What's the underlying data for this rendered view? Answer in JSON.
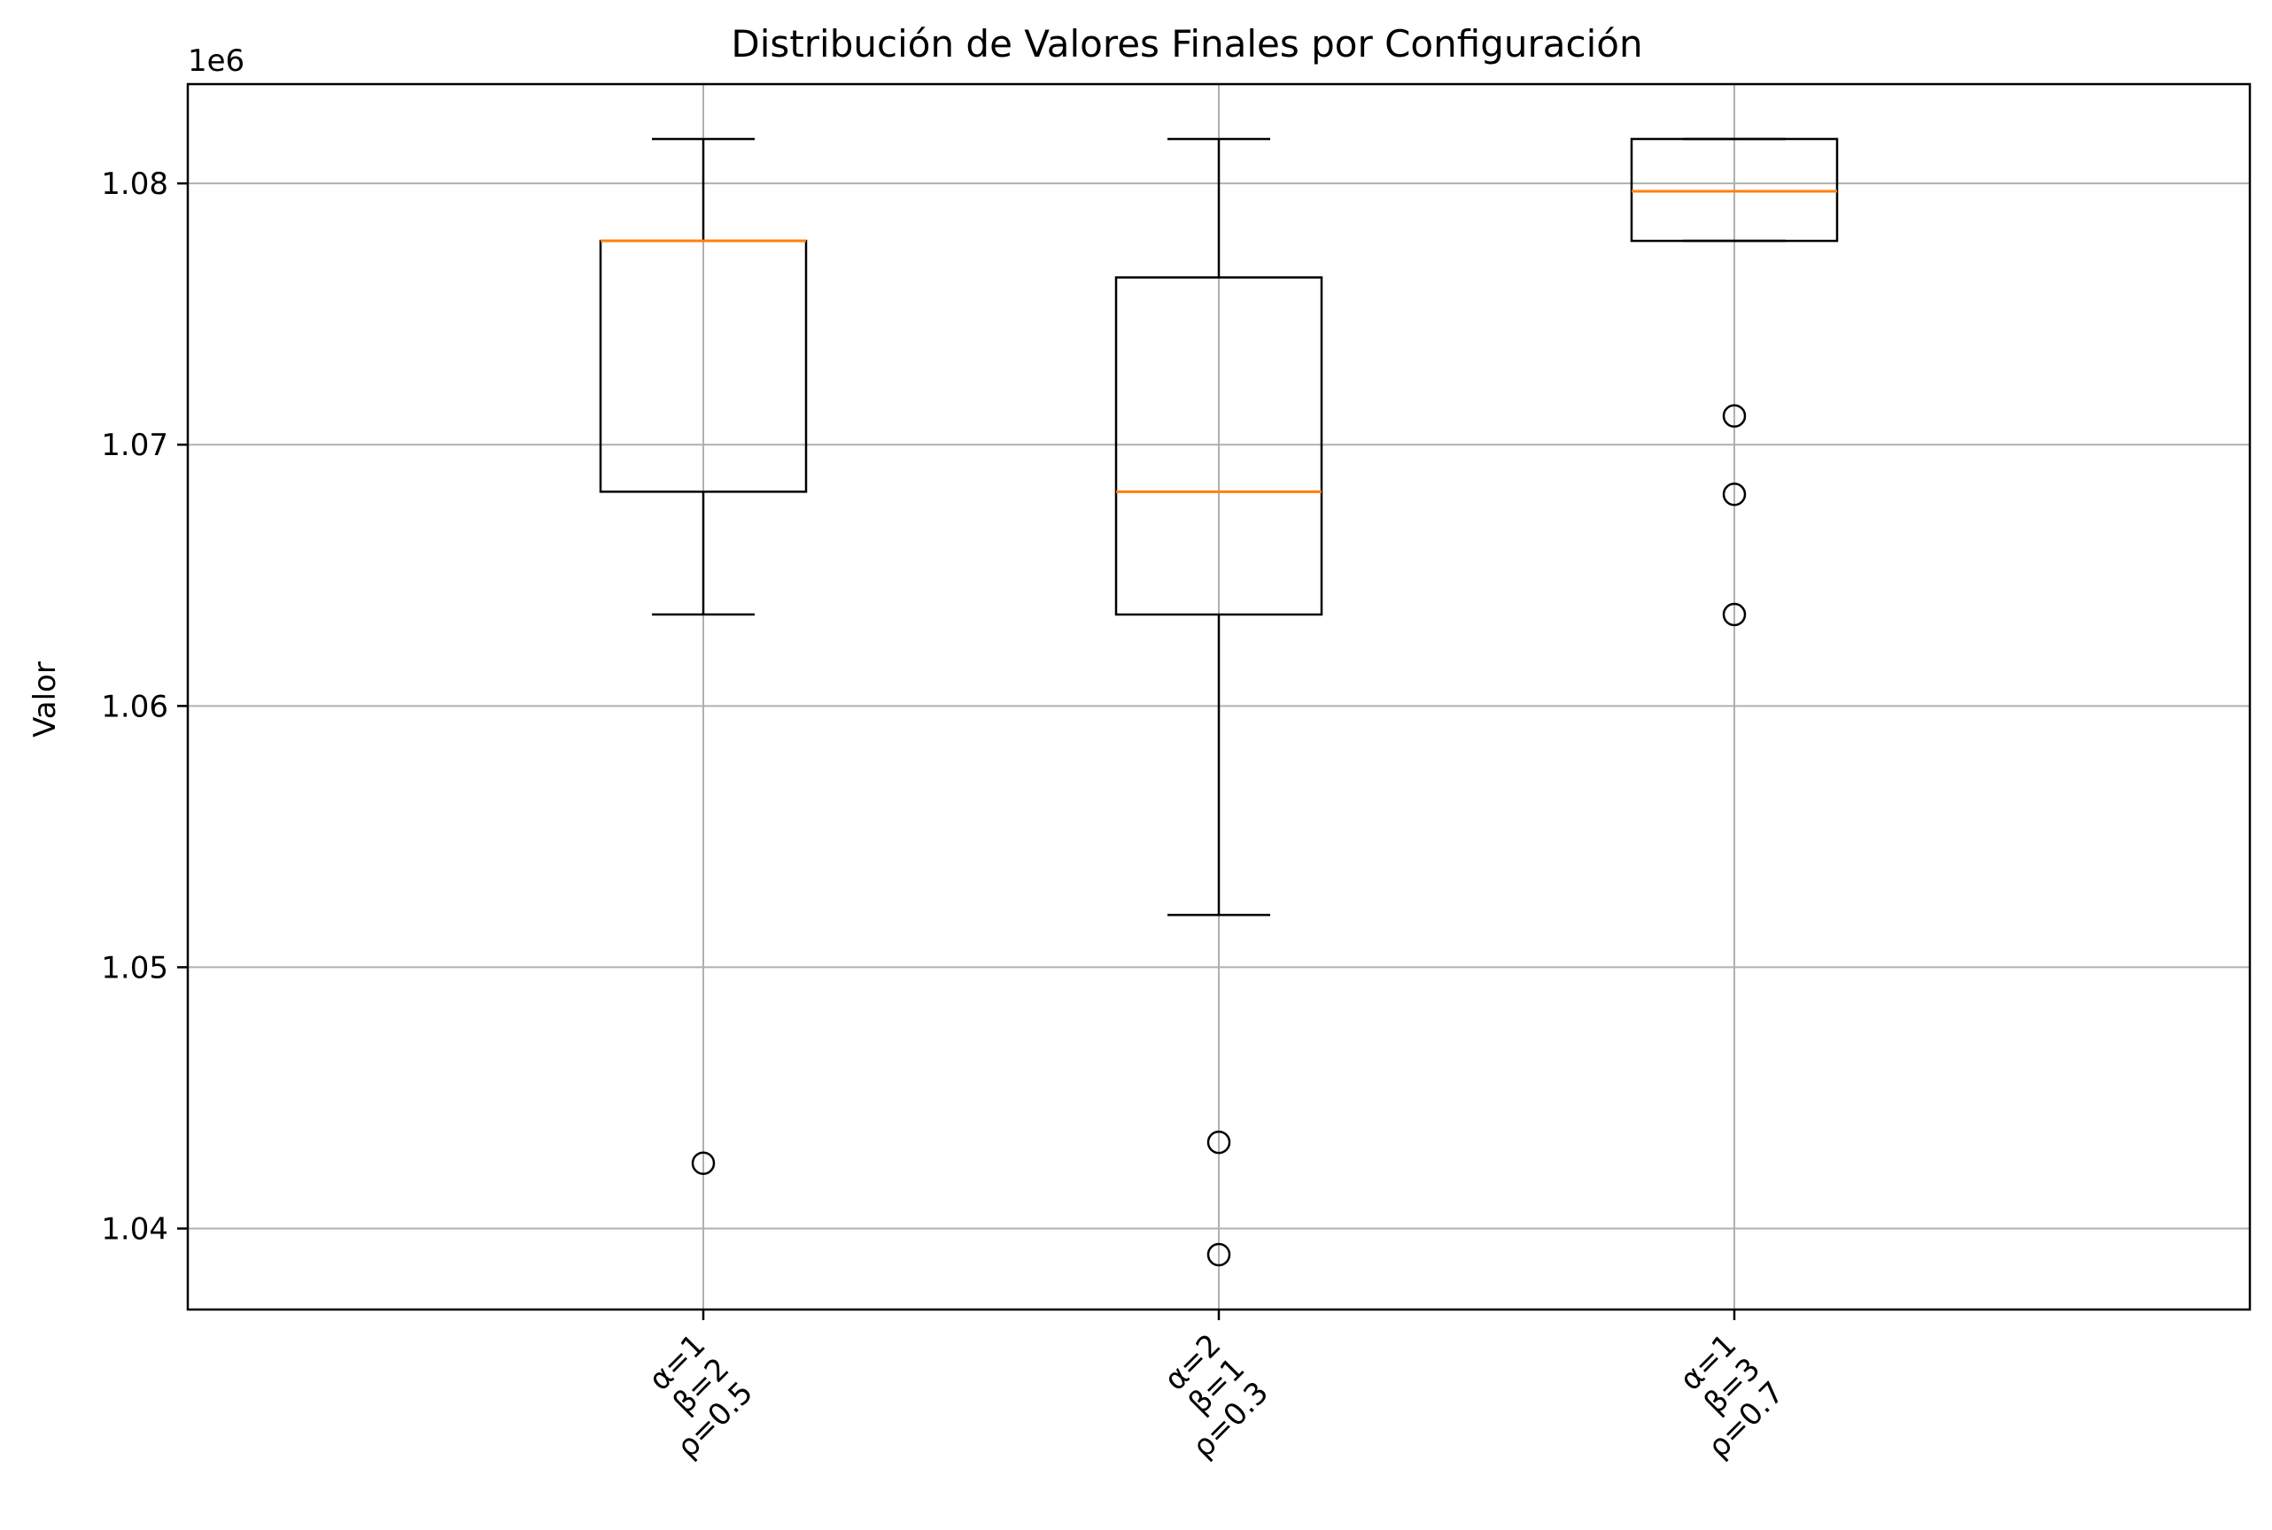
{
  "chart_data": {
    "type": "box",
    "title": "Distribución de Valores Finales por Configuración",
    "xlabel": "",
    "ylabel": "Valor",
    "offset_label": "1e6",
    "y_scale_factor": 1000000,
    "ylim": [
      1036900,
      1083800
    ],
    "yticks": [
      {
        "value": 1040000,
        "label": "1.04"
      },
      {
        "value": 1050000,
        "label": "1.05"
      },
      {
        "value": 1060000,
        "label": "1.06"
      },
      {
        "value": 1070000,
        "label": "1.07"
      },
      {
        "value": 1080000,
        "label": "1.08"
      }
    ],
    "grid": true,
    "categories": [
      {
        "lines": [
          "α=1",
          "β=2",
          "ρ=0.5"
        ]
      },
      {
        "lines": [
          "α=2",
          "β=1",
          "ρ=0.3"
        ]
      },
      {
        "lines": [
          "α=1",
          "β=3",
          "ρ=0.7"
        ]
      }
    ],
    "boxes": [
      {
        "whisker_low": 1063500,
        "q1": 1068200,
        "median": 1077800,
        "q3": 1077800,
        "whisker_high": 1081700,
        "outliers": [
          1042500
        ]
      },
      {
        "whisker_low": 1052000,
        "q1": 1063500,
        "median": 1068200,
        "q3": 1076400,
        "whisker_high": 1081700,
        "outliers": [
          1043300,
          1039000
        ]
      },
      {
        "whisker_low": 1077800,
        "q1": 1077800,
        "median": 1079700,
        "q3": 1081700,
        "whisker_high": 1081700,
        "outliers": [
          1071100,
          1068100,
          1063500
        ]
      }
    ],
    "colors": {
      "box": "#000000",
      "median": "#ff7f0e",
      "grid": "#b0b0b0",
      "axes": "#000000"
    }
  }
}
